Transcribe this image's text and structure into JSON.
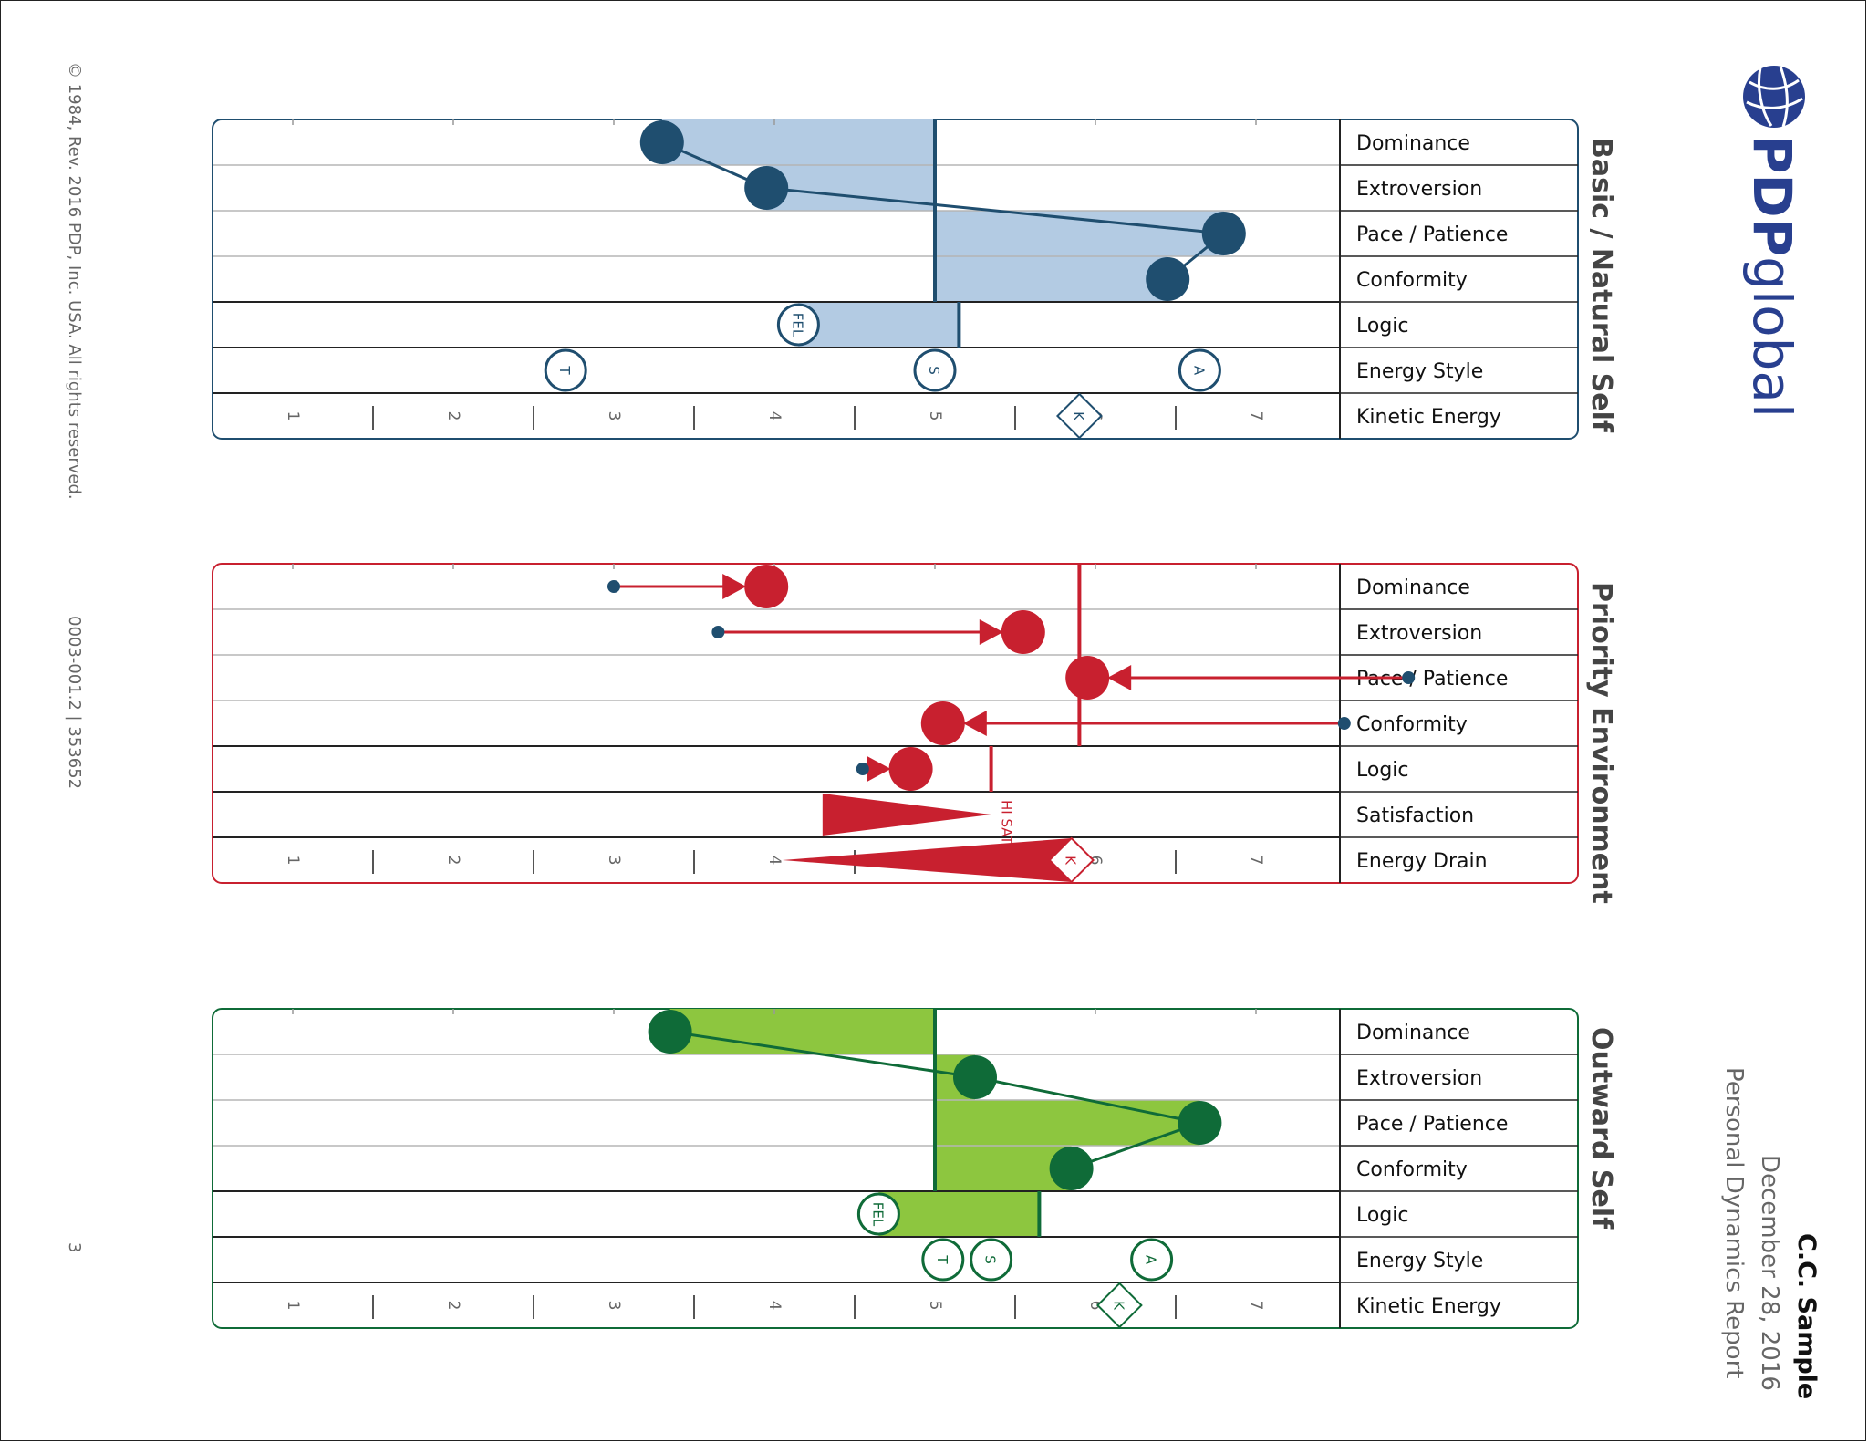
{
  "footer": {
    "copyright": "© 1984, Rev. 2016 PDP, Inc. USA. All rights reserved.",
    "doc_id": "0003-001.2 | 353652",
    "page_number": "3"
  },
  "brand": {
    "logo_bold": "PDP",
    "logo_light": "global"
  },
  "report": {
    "name": "C.C. Sample",
    "date": "December 28, 2016",
    "title": "Personal Dynamics Report"
  },
  "colors": {
    "basic": "#1f4e6f",
    "basic_fill": "#b3cbe3",
    "priority": "#c8202f",
    "outward": "#0f6b38",
    "outward_fill": "#8dc63f"
  },
  "chart_data": [
    {
      "type": "profile",
      "title": "Basic / Natural Self",
      "scale": {
        "min": 0.5,
        "max": 7.5,
        "tick_labels": [
          "1",
          "2",
          "3",
          "4",
          "5",
          "6",
          "7"
        ]
      },
      "rows": [
        "Dominance",
        "Extroversion",
        "Pace / Patience",
        "Conformity",
        "Logic",
        "Energy Style",
        "Kinetic Energy"
      ],
      "midline": 5,
      "traits": [
        {
          "name": "Dominance",
          "value": 3.3
        },
        {
          "name": "Extroversion",
          "value": 3.95
        },
        {
          "name": "Pace / Patience",
          "value": 6.8
        },
        {
          "name": "Conformity",
          "value": 6.45
        }
      ],
      "logic": {
        "value": 5.15,
        "fel": 4.15,
        "fel_label": "FEL"
      },
      "energy_style": [
        {
          "label": "T",
          "value": 2.7
        },
        {
          "label": "S",
          "value": 5.0
        },
        {
          "label": "A",
          "value": 6.65
        }
      ],
      "kinetic_energy": {
        "label": "K",
        "value": 5.9
      }
    },
    {
      "type": "arrows",
      "title": "Priority Environment",
      "scale": {
        "min": 0.5,
        "max": 7.5,
        "tick_labels": [
          "1",
          "2",
          "3",
          "4",
          "5",
          "6",
          "7"
        ]
      },
      "rows": [
        "Dominance",
        "Extroversion",
        "Pace / Patience",
        "Conformity",
        "Logic",
        "Satisfaction",
        "Energy Drain"
      ],
      "midline": 5.9,
      "traits": [
        {
          "name": "Dominance",
          "from": 3.0,
          "to": 3.95
        },
        {
          "name": "Extroversion",
          "from": 3.65,
          "to": 5.55
        },
        {
          "name": "Pace / Patience",
          "from": 7.95,
          "to": 5.95
        },
        {
          "name": "Conformity",
          "from": 7.55,
          "to": 5.05
        }
      ],
      "logic": {
        "from": 4.55,
        "to": 4.85,
        "marker": 5.35
      },
      "satisfaction": {
        "start": 4.3,
        "end": 5.35,
        "label": "HI SAT"
      },
      "energy_drain": {
        "start": 4.05,
        "end": 5.85,
        "label": "K"
      }
    },
    {
      "type": "profile",
      "title": "Outward Self",
      "scale": {
        "min": 0.5,
        "max": 7.5,
        "tick_labels": [
          "1",
          "2",
          "3",
          "4",
          "5",
          "6",
          "7"
        ]
      },
      "rows": [
        "Dominance",
        "Extroversion",
        "Pace / Patience",
        "Conformity",
        "Logic",
        "Energy Style",
        "Kinetic Energy"
      ],
      "midline": 5.0,
      "traits": [
        {
          "name": "Dominance",
          "value": 3.35
        },
        {
          "name": "Extroversion",
          "value": 5.25
        },
        {
          "name": "Pace / Patience",
          "value": 6.65
        },
        {
          "name": "Conformity",
          "value": 5.85
        }
      ],
      "logic": {
        "value": 5.65,
        "fel": 4.65,
        "fel_label": "FEL"
      },
      "energy_style": [
        {
          "label": "T",
          "value": 5.05
        },
        {
          "label": "S",
          "value": 5.35
        },
        {
          "label": "A",
          "value": 6.35
        }
      ],
      "kinetic_energy": {
        "label": "K",
        "value": 6.15
      }
    }
  ]
}
